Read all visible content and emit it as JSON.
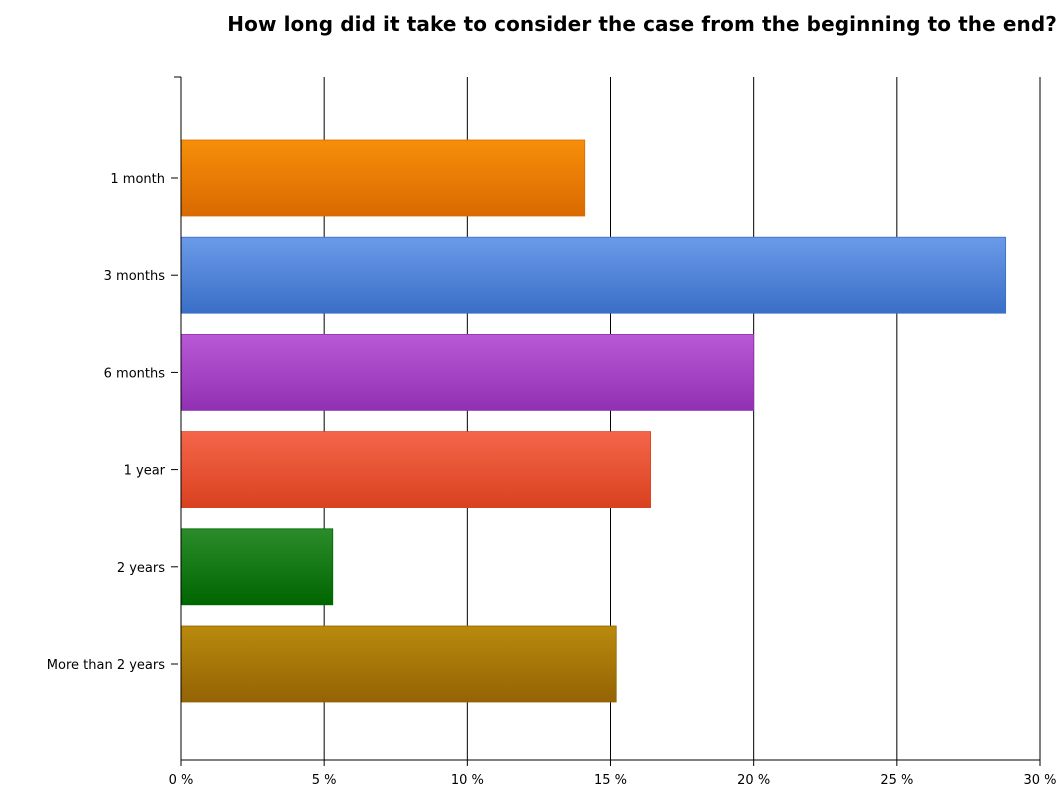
{
  "chart_data": {
    "type": "bar",
    "orientation": "horizontal",
    "title": "How long did it take to consider the case from the beginning to the end?",
    "categories": [
      "1 month",
      "3 months",
      "6 months",
      "1 year",
      "2 years",
      "More than 2 years"
    ],
    "values": [
      14.1,
      28.8,
      20.0,
      16.4,
      5.3,
      15.2
    ],
    "bar_colors": [
      [
        "#f78e0a",
        "#d96a00"
      ],
      [
        "#6b9ae8",
        "#3a6fc7"
      ],
      [
        "#b959d6",
        "#9230b3"
      ],
      [
        "#f5654a",
        "#d9421f"
      ],
      [
        "#2a8c2a",
        "#006600"
      ],
      [
        "#b98a0c",
        "#946305"
      ]
    ],
    "xlim": [
      0,
      30
    ],
    "xticks": [
      0,
      5,
      10,
      15,
      20,
      25,
      30
    ],
    "xtick_labels": [
      "0 %",
      "5 %",
      "10 %",
      "15 %",
      "20 %",
      "25 %",
      "30 %"
    ],
    "grid": true,
    "grid_axis": "x",
    "legend": "none",
    "xlabel": "",
    "ylabel": ""
  }
}
